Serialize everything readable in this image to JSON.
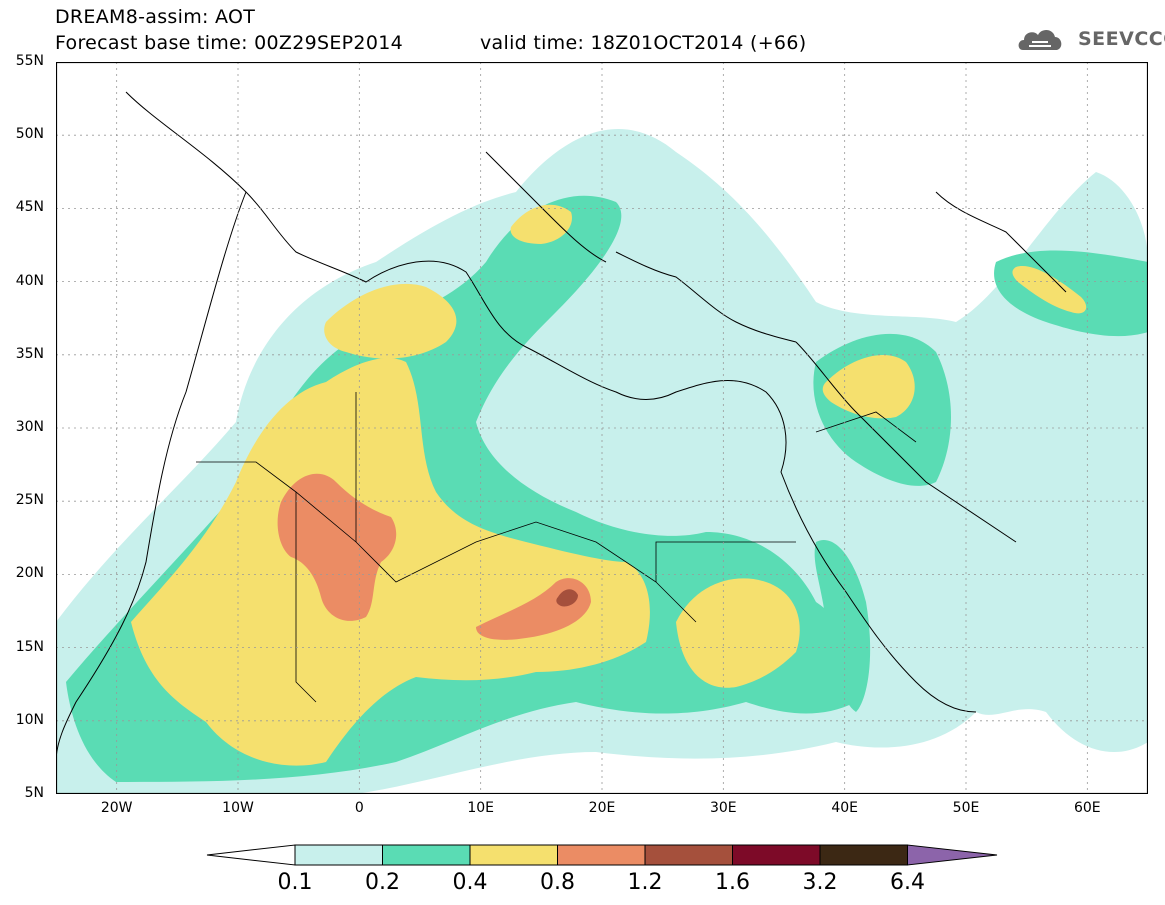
{
  "header": {
    "title": "DREAM8-assim: AOT",
    "base_time": "Forecast base time: 00Z29SEP2014",
    "valid_time": "valid time: 18Z01OCT2014 (+66)",
    "logo_text": "SEEVCCC"
  },
  "map": {
    "lon_range": [
      -25,
      65
    ],
    "lat_range": [
      5,
      55
    ],
    "lat_labels": [
      "55N",
      "50N",
      "45N",
      "40N",
      "35N",
      "30N",
      "25N",
      "20N",
      "15N",
      "10N",
      "5N"
    ],
    "lon_labels": [
      "20W",
      "10W",
      "0",
      "10E",
      "20E",
      "30E",
      "40E",
      "50E",
      "60E"
    ],
    "grid": true
  },
  "legend": {
    "levels": [
      "0.1",
      "0.2",
      "0.4",
      "0.8",
      "1.2",
      "1.6",
      "3.2",
      "6.4"
    ],
    "colors": [
      "#ffffff",
      "#c8f0ec",
      "#5adcb4",
      "#f5e06e",
      "#eb8c64",
      "#a5503c",
      "#7d0a28",
      "#3c2814",
      "#8c64aa"
    ]
  }
}
